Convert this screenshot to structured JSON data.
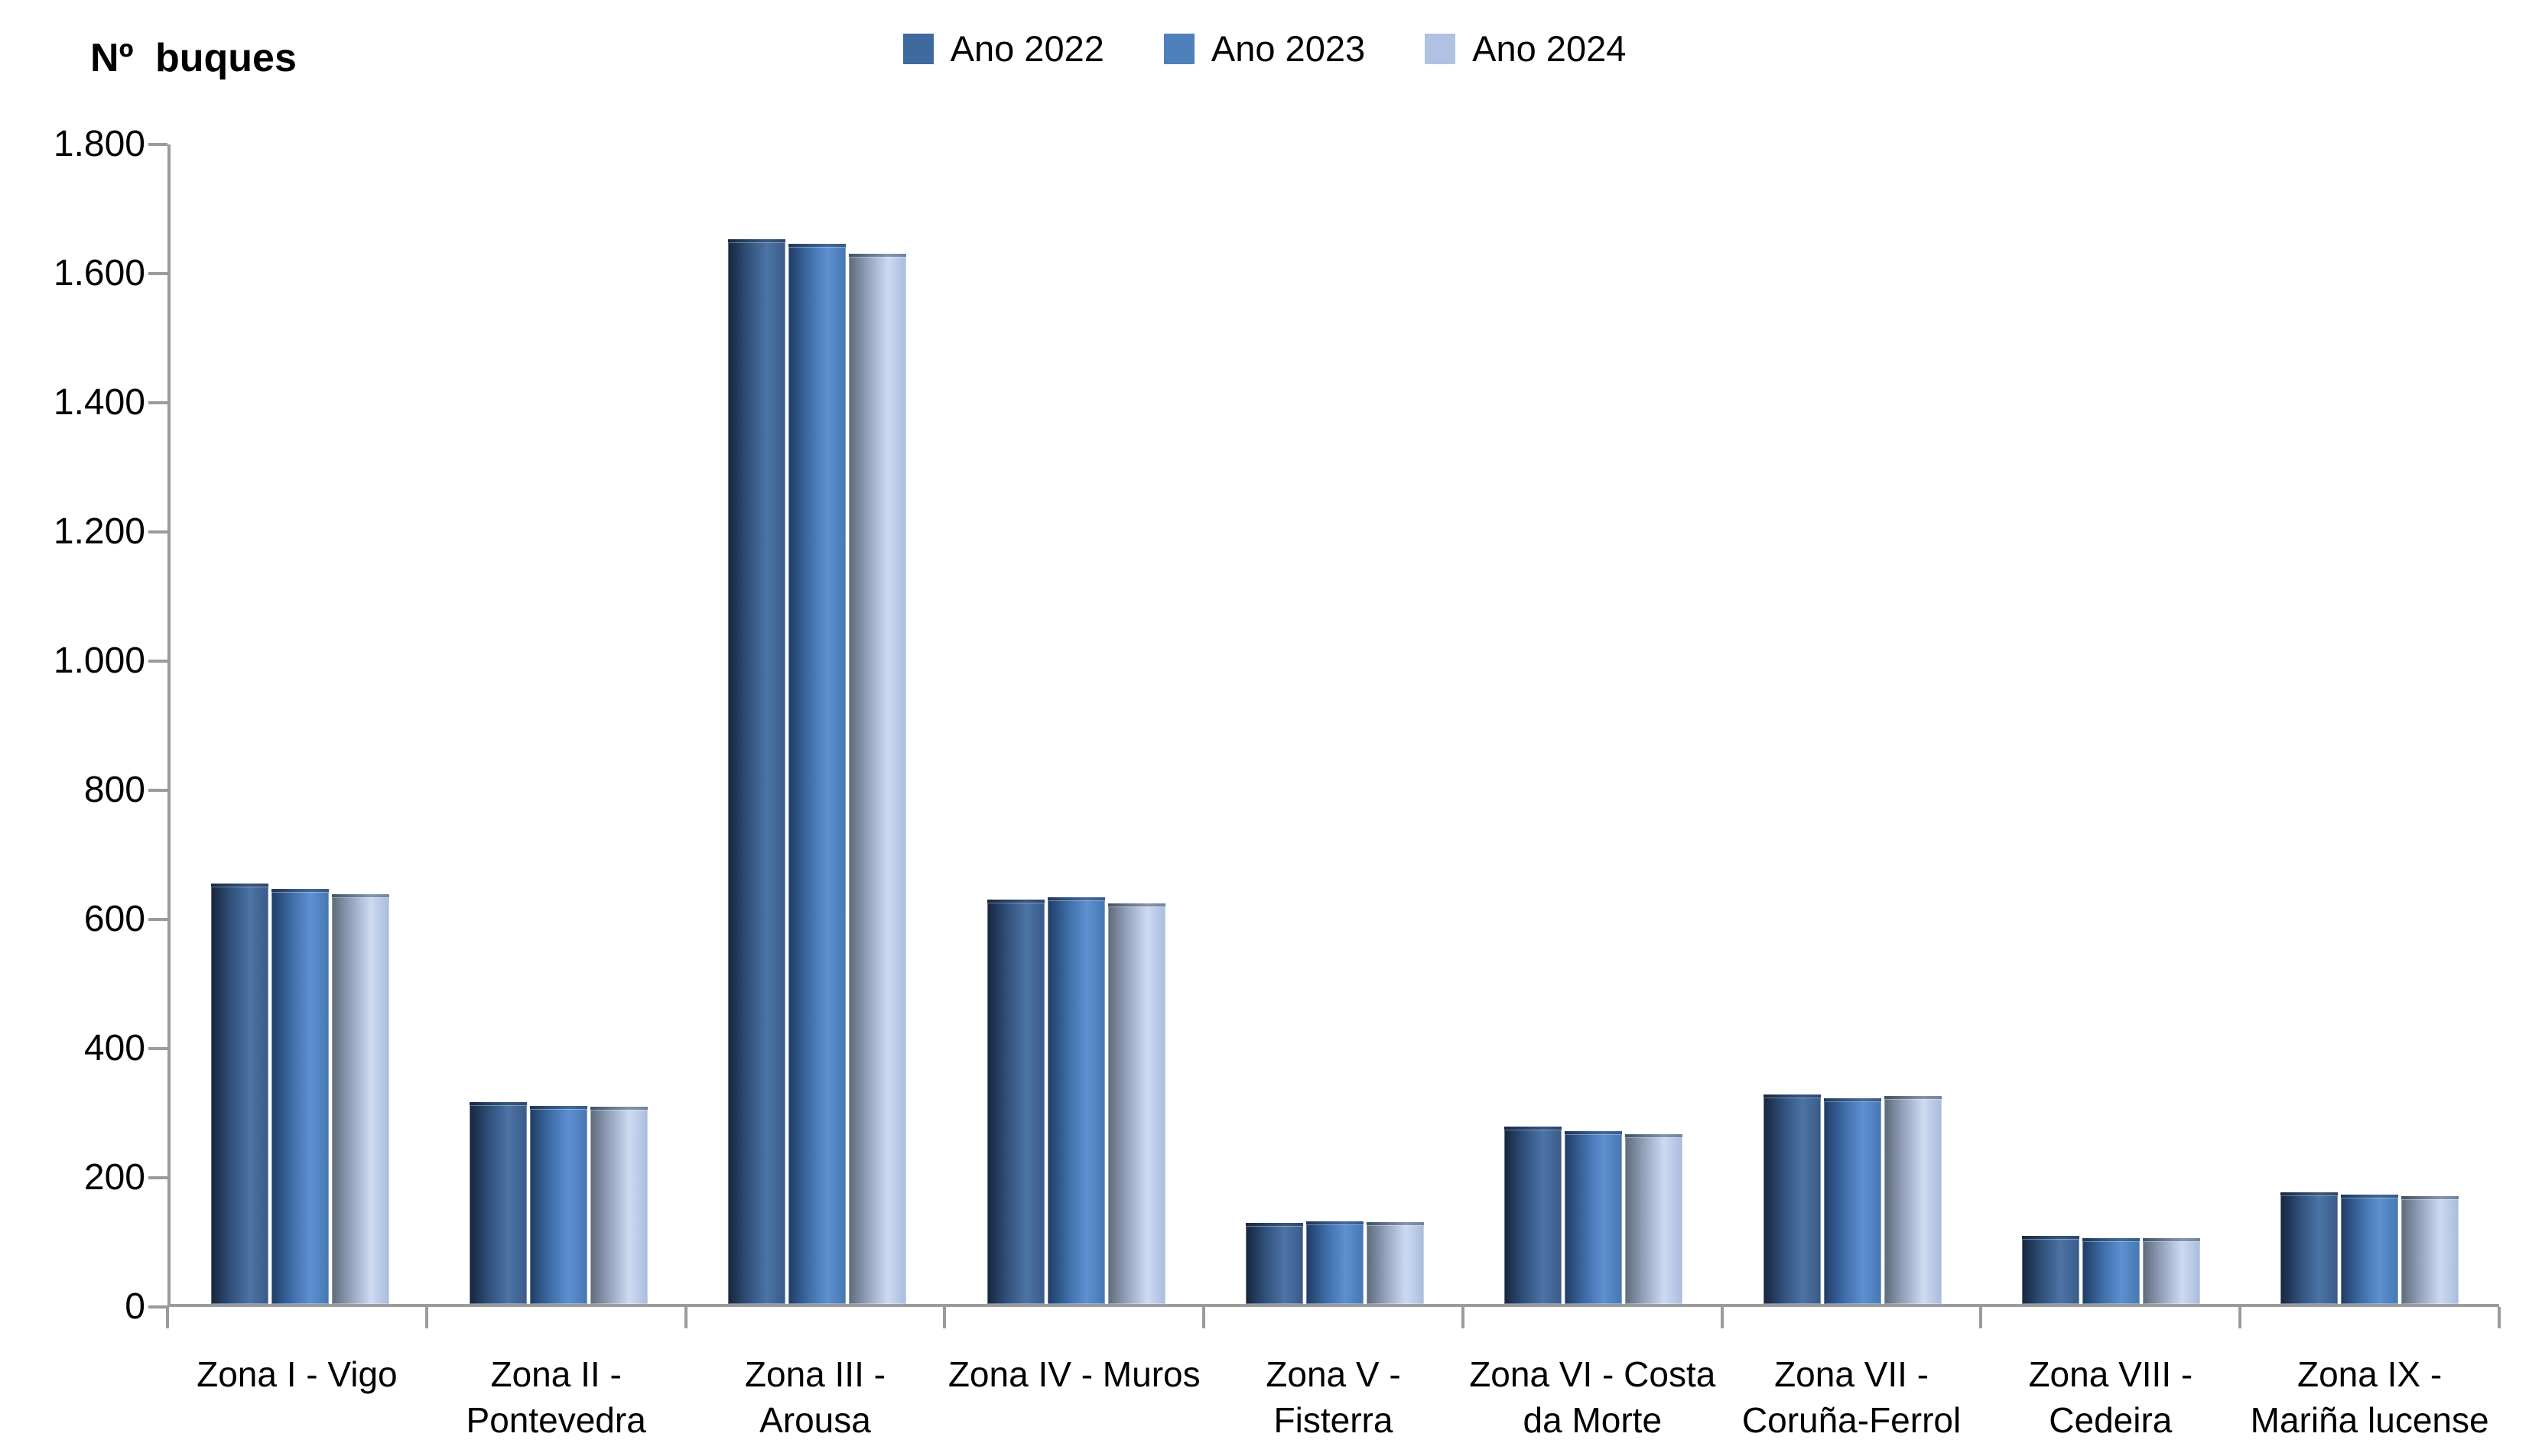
{
  "title": "Nº buques",
  "legend": {
    "items": [
      {
        "label": "Ano 2022",
        "color": "#3E6A9E"
      },
      {
        "label": "Ano 2023",
        "color": "#4E81BC"
      },
      {
        "label": "Ano 2024",
        "color": "#B0C2E1"
      }
    ]
  },
  "chart_data": {
    "type": "bar",
    "title": "Nº buques",
    "ylabel": "Nº buques",
    "xlabel": "",
    "ylim": [
      0,
      1800
    ],
    "ytick_step": 200,
    "ytick_labels": [
      "0",
      "200",
      "400",
      "600",
      "800",
      "1.000",
      "1.200",
      "1.400",
      "1.600",
      "1.800"
    ],
    "grid": false,
    "legend_position": "top-center",
    "categories": [
      "Zona I - Vigo",
      "Zona II - Pontevedra",
      "Zona III - Arousa",
      "Zona IV - Muros",
      "Zona V - Fisterra",
      "Zona VI - Costa da Morte",
      "Zona VII - Coruña-Ferrol",
      "Zona VIII - Cedeira",
      "Zona IX - Mariña lucense"
    ],
    "category_label_lines": [
      [
        "Zona I - Vigo"
      ],
      [
        "Zona II -",
        "Pontevedra"
      ],
      [
        "Zona III -",
        "Arousa"
      ],
      [
        "Zona IV - Muros"
      ],
      [
        "Zona V -",
        "Fisterra"
      ],
      [
        "Zona VI - Costa",
        "da Morte"
      ],
      [
        "Zona VII -",
        "Coruña-Ferrol"
      ],
      [
        "Zona VIII -",
        "Cedeira"
      ],
      [
        "Zona IX -",
        "Mariña lucense"
      ]
    ],
    "series": [
      {
        "name": "Ano 2022",
        "color": "#3E6A9E",
        "gradient": [
          "#16253D",
          "#31517C",
          "#4C74A6",
          "#3A5A88"
        ],
        "values": [
          648,
          308,
          1648,
          623,
          121,
          271,
          320,
          101,
          169
        ]
      },
      {
        "name": "Ano 2023",
        "color": "#4E81BC",
        "gradient": [
          "#1F3C64",
          "#3E6CA7",
          "#5E90D2",
          "#4677B2"
        ],
        "values": [
          639,
          303,
          1641,
          627,
          123,
          264,
          315,
          97,
          165
        ]
      },
      {
        "name": "Ano 2024",
        "color": "#B0C2E1",
        "gradient": [
          "#5E6979",
          "#97A6C0",
          "#CDDAF1",
          "#A9BCDD"
        ],
        "values": [
          631,
          301,
          1626,
          617,
          122,
          259,
          318,
          97,
          163
        ]
      }
    ]
  }
}
